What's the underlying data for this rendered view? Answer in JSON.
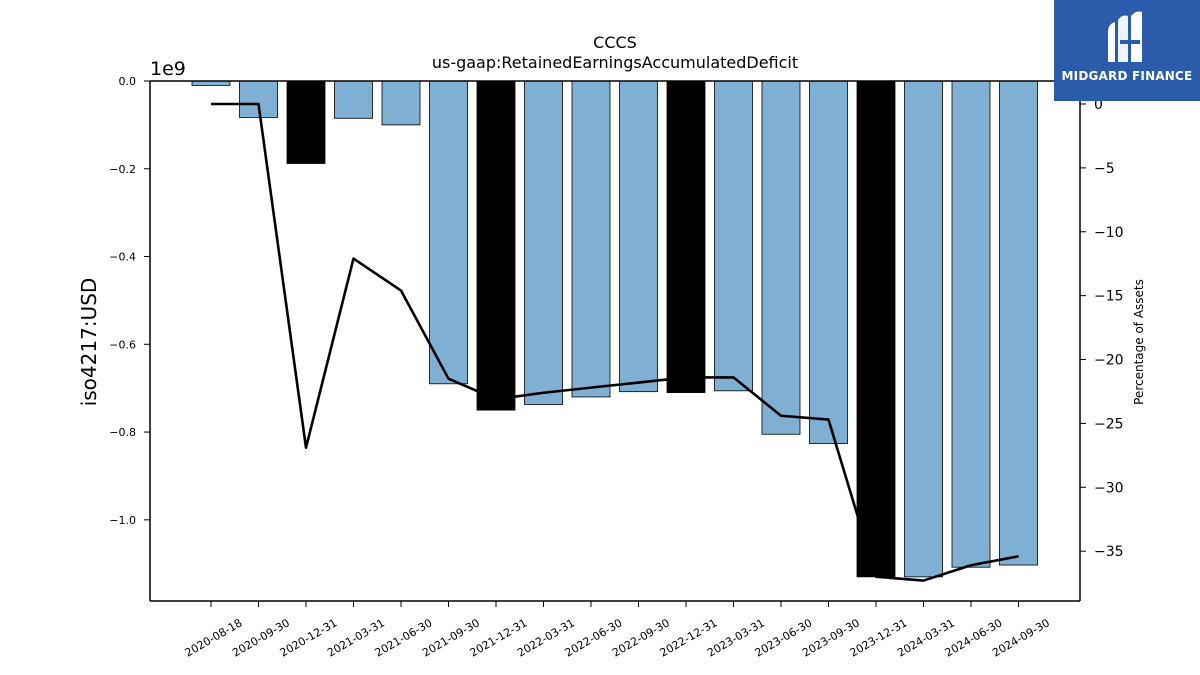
{
  "chart_data": {
    "type": "bar",
    "title": "CCCS",
    "subtitle": "us-gaap:RetainedEarningsAccumulatedDeficit",
    "ylabel": "iso4217:USD",
    "y_offset_label": "1e9",
    "y2label": "Percentage of Assets",
    "categories": [
      "2020-08-18",
      "2020-09-30",
      "2020-12-31",
      "2021-03-31",
      "2021-06-30",
      "2021-09-30",
      "2021-12-31",
      "2022-03-31",
      "2022-06-30",
      "2022-09-30",
      "2022-12-31",
      "2023-03-31",
      "2023-06-30",
      "2023-09-30",
      "2023-12-31",
      "2024-03-31",
      "2024-06-30",
      "2024-09-30"
    ],
    "values": [
      -0.01,
      -0.083,
      -0.188,
      -0.085,
      -0.1,
      -0.69,
      -0.75,
      -0.737,
      -0.72,
      -0.708,
      -0.71,
      -0.706,
      -0.805,
      -0.826,
      -1.13,
      -1.13,
      -1.108,
      -1.103
    ],
    "highlight": [
      false,
      false,
      true,
      false,
      false,
      false,
      true,
      false,
      false,
      false,
      true,
      false,
      false,
      false,
      true,
      false,
      false,
      false
    ],
    "pct_assets": [
      0,
      0,
      -26.9,
      -12.1,
      -14.6,
      -21.5,
      -23.1,
      -22.6,
      -22.2,
      -21.8,
      -21.4,
      -21.4,
      -24.4,
      -24.7,
      -37.0,
      -37.3,
      -36.1,
      -35.4
    ],
    "ylim": [
      -1.185,
      0.0
    ],
    "yticks": [
      0.0,
      -0.2,
      -0.4,
      -0.6,
      -0.8,
      -1.0
    ],
    "ytick_labels": [
      "0.0",
      "−0.2",
      "−0.4",
      "−0.6",
      "−0.8",
      "−1.0"
    ],
    "y2lim": [
      -38.9,
      1.8
    ],
    "y2ticks": [
      0,
      -5,
      -10,
      -15,
      -20,
      -25,
      -30,
      -35
    ],
    "y2tick_labels": [
      "0",
      "−5",
      "−10",
      "−15",
      "−20",
      "−25",
      "−30",
      "−35"
    ],
    "colors": {
      "bar": "#7fb0d4",
      "highlight": "#000000",
      "line": "#000000"
    }
  },
  "logo": {
    "text": "MIDGARD FINANCE",
    "color": "#2b5bab"
  }
}
